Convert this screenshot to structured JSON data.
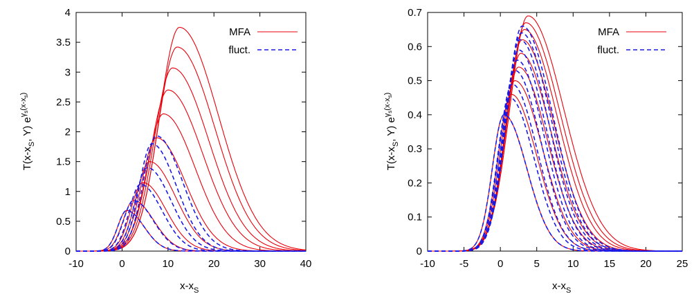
{
  "colors": {
    "mfa": "#e8000b",
    "fluct": "#1a1ae6",
    "axis": "#000000"
  },
  "chart_data": [
    {
      "type": "line",
      "xlabel": "x-x_s",
      "ylabel": "T(x-x_S, Y) e^{γ_s(x-x_s)}",
      "xlim": [
        -10,
        40
      ],
      "ylim": [
        0,
        4
      ],
      "x_ticks": [
        "-10",
        "0",
        "10",
        "20",
        "30",
        "40"
      ],
      "y_ticks": [
        "0",
        "0.5",
        "1",
        "1.5",
        "2",
        "2.5",
        "3",
        "3.5",
        "4"
      ],
      "legend": {
        "position": "top-right",
        "entries": [
          {
            "label": "MFA",
            "style": "solid",
            "color": "#e8000b"
          },
          {
            "label": "fluct.",
            "style": "dashed",
            "color": "#1a1ae6"
          }
        ]
      },
      "series": [
        {
          "name": "MFA",
          "style": "solid",
          "curves": [
            {
              "peak_x": 1.0,
              "peak_y": 0.68,
              "width": 6.0
            },
            {
              "peak_x": 2.5,
              "peak_y": 0.85,
              "width": 7.0
            },
            {
              "peak_x": 4.5,
              "peak_y": 1.15,
              "width": 8.0
            },
            {
              "peak_x": 6.0,
              "peak_y": 1.5,
              "width": 9.0
            },
            {
              "peak_x": 7.5,
              "peak_y": 1.9,
              "width": 10.0
            },
            {
              "peak_x": 9.0,
              "peak_y": 2.3,
              "width": 11.0
            },
            {
              "peak_x": 10.0,
              "peak_y": 2.7,
              "width": 12.0
            },
            {
              "peak_x": 11.0,
              "peak_y": 3.07,
              "width": 12.5
            },
            {
              "peak_x": 12.0,
              "peak_y": 3.42,
              "width": 13.0
            },
            {
              "peak_x": 12.5,
              "peak_y": 3.75,
              "width": 13.5
            }
          ]
        },
        {
          "name": "fluct.",
          "style": "dashed",
          "curves": [
            {
              "peak_x": 1.0,
              "peak_y": 0.68,
              "width": 6.0
            },
            {
              "peak_x": 2.5,
              "peak_y": 0.85,
              "width": 6.8
            },
            {
              "peak_x": 4.0,
              "peak_y": 1.12,
              "width": 7.5
            },
            {
              "peak_x": 5.5,
              "peak_y": 1.4,
              "width": 8.2
            },
            {
              "peak_x": 6.5,
              "peak_y": 1.8,
              "width": 8.5
            },
            {
              "peak_x": 7.5,
              "peak_y": 1.93,
              "width": 9.0
            }
          ]
        }
      ]
    },
    {
      "type": "line",
      "xlabel": "x-x_s",
      "ylabel": "T(x-x_S, Y) e^{γ_s(x-x_s)}",
      "xlim": [
        -10,
        25
      ],
      "ylim": [
        0,
        0.7
      ],
      "x_ticks": [
        "-10",
        "-5",
        "0",
        "5",
        "10",
        "15",
        "20",
        "25"
      ],
      "y_ticks": [
        "0",
        "0.1",
        "0.2",
        "0.3",
        "0.4",
        "0.5",
        "0.6",
        "0.7"
      ],
      "legend": {
        "position": "top-right",
        "entries": [
          {
            "label": "MFA",
            "style": "solid",
            "color": "#e8000b"
          },
          {
            "label": "fluct.",
            "style": "dashed",
            "color": "#1a1ae6"
          }
        ]
      },
      "series": [
        {
          "name": "MFA",
          "style": "solid",
          "curves": [
            {
              "peak_x": 0.5,
              "peak_y": 0.4,
              "width": 5.0
            },
            {
              "peak_x": 1.5,
              "peak_y": 0.46,
              "width": 5.6
            },
            {
              "peak_x": 2.0,
              "peak_y": 0.5,
              "width": 6.0
            },
            {
              "peak_x": 2.5,
              "peak_y": 0.54,
              "width": 6.3
            },
            {
              "peak_x": 2.8,
              "peak_y": 0.58,
              "width": 6.6
            },
            {
              "peak_x": 3.0,
              "peak_y": 0.62,
              "width": 6.9
            },
            {
              "peak_x": 3.3,
              "peak_y": 0.65,
              "width": 7.2
            },
            {
              "peak_x": 3.5,
              "peak_y": 0.67,
              "width": 7.5
            },
            {
              "peak_x": 3.8,
              "peak_y": 0.69,
              "width": 7.8
            }
          ]
        },
        {
          "name": "fluct.",
          "style": "dashed",
          "curves": [
            {
              "peak_x": 0.5,
              "peak_y": 0.4,
              "width": 5.0
            },
            {
              "peak_x": 1.3,
              "peak_y": 0.45,
              "width": 5.3
            },
            {
              "peak_x": 1.6,
              "peak_y": 0.49,
              "width": 5.5
            },
            {
              "peak_x": 2.0,
              "peak_y": 0.53,
              "width": 5.7
            },
            {
              "peak_x": 2.3,
              "peak_y": 0.56,
              "width": 5.9
            },
            {
              "peak_x": 2.5,
              "peak_y": 0.59,
              "width": 6.1
            },
            {
              "peak_x": 2.7,
              "peak_y": 0.62,
              "width": 6.3
            },
            {
              "peak_x": 2.9,
              "peak_y": 0.64,
              "width": 6.5
            },
            {
              "peak_x": 3.0,
              "peak_y": 0.66,
              "width": 6.7
            }
          ]
        }
      ]
    }
  ]
}
